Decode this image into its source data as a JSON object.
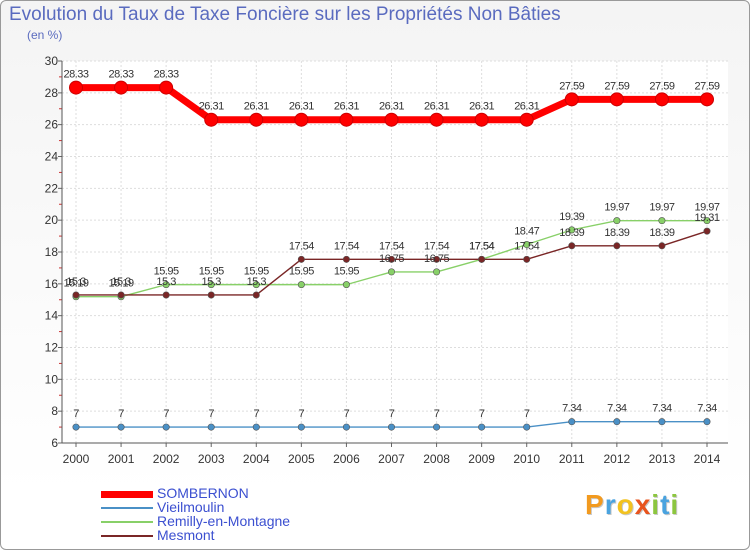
{
  "chart_data": {
    "type": "line",
    "title": "Evolution du Taux de Taxe Foncière sur les Propriétés Non Bâties",
    "subtitle": "(en %)",
    "xlabel": "",
    "ylabel": "(en %)",
    "x": [
      "2000",
      "2001",
      "2002",
      "2003",
      "2004",
      "2005",
      "2006",
      "2007",
      "2008",
      "2009",
      "2010",
      "2011",
      "2012",
      "2013",
      "2014"
    ],
    "ylim": [
      6,
      30
    ],
    "yticks": [
      6,
      8,
      10,
      12,
      14,
      16,
      18,
      20,
      22,
      24,
      26,
      28,
      30
    ],
    "grid": true,
    "legend_position": "bottom-left",
    "series": [
      {
        "name": "SOMBERNON",
        "color": "#ff0000",
        "values": [
          28.33,
          28.33,
          28.33,
          26.31,
          26.31,
          26.31,
          26.31,
          26.31,
          26.31,
          26.31,
          26.31,
          27.59,
          27.59,
          27.59,
          27.59
        ],
        "labels": [
          "28.33",
          "28.33",
          "28.33",
          "26.31",
          "26.31",
          "26.31",
          "26.31",
          "26.31",
          "26.31",
          "26.31",
          "26.31",
          "27.59",
          "27.59",
          "27.59",
          "27.59"
        ]
      },
      {
        "name": "Vieilmoulin",
        "color": "#4a90c6",
        "values": [
          7,
          7,
          7,
          7,
          7,
          7,
          7,
          7,
          7,
          7,
          7,
          7.34,
          7.34,
          7.34,
          7.34
        ],
        "labels": [
          "7",
          "7",
          "7",
          "7",
          "7",
          "7",
          "7",
          "7",
          "7",
          "7",
          "7",
          "7.34",
          "7.34",
          "7.34",
          "7.34"
        ]
      },
      {
        "name": "Remilly-en-Montagne",
        "color": "#88d068",
        "values": [
          15.19,
          15.19,
          15.95,
          15.95,
          15.95,
          15.95,
          15.95,
          16.75,
          16.75,
          17.54,
          18.47,
          19.39,
          19.97,
          19.97,
          19.97
        ],
        "labels": [
          "15.19",
          "15.19",
          "15.95",
          "15.95",
          "15.95",
          "15.95",
          "15.95",
          "16.75",
          "16.75",
          "17.54",
          "18.47",
          "19.39",
          "19.97",
          "19.97",
          "19.97"
        ]
      },
      {
        "name": "Mesmont",
        "color": "#7a2626",
        "values": [
          15.3,
          15.3,
          15.3,
          15.3,
          15.3,
          17.54,
          17.54,
          17.54,
          17.54,
          17.54,
          17.54,
          18.39,
          18.39,
          18.39,
          19.31
        ],
        "labels": [
          "15.3",
          "15.3",
          "15.3",
          "15.3",
          "15.3",
          "17.54",
          "17.54",
          "17.54",
          "17.54",
          "17.54",
          "17.54",
          "18.39",
          "18.39",
          "18.39",
          "19.31"
        ]
      }
    ]
  },
  "legend": [
    {
      "label": "SOMBERNON"
    },
    {
      "label": "Vieilmoulin"
    },
    {
      "label": "Remilly-en-Montagne"
    },
    {
      "label": "Mesmont"
    }
  ],
  "logo": {
    "text": "Proxiti",
    "letters": [
      {
        "ch": "P",
        "color": "#f29a1f"
      },
      {
        "ch": "r",
        "color": "#4aa3df"
      },
      {
        "ch": "o",
        "color": "#f2c21f"
      },
      {
        "ch": "x",
        "color": "#e8541e"
      },
      {
        "ch": "i",
        "color": "#8cc63f"
      },
      {
        "ch": "t",
        "color": "#4aa3df"
      },
      {
        "ch": "i",
        "color": "#8cc63f"
      }
    ]
  }
}
